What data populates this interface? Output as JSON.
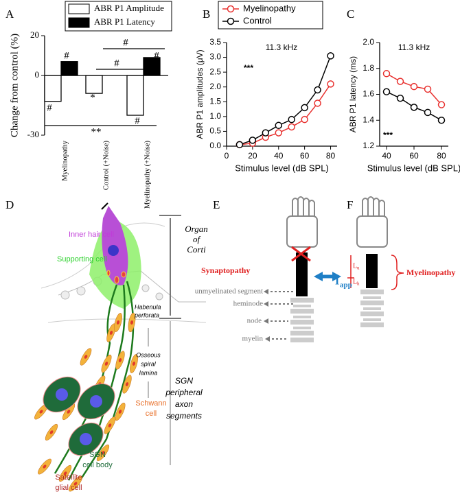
{
  "panels": {
    "a": "A",
    "b": "B",
    "c": "C",
    "d": "D",
    "e": "E",
    "f": "F"
  },
  "chart_data": [
    {
      "type": "bar",
      "categories": [
        "Myelinopathy",
        "Control (+Noise)",
        "Myelinopathy (+Noise)"
      ],
      "ylabel": "Change from control (%)",
      "series": [
        {
          "name": "ABR P1 Amplitude",
          "color": "#ffffff",
          "values": [
            -13,
            -9,
            -20
          ]
        },
        {
          "name": "ABR P1 Latency",
          "color": "#000000",
          "values": [
            7,
            null,
            9
          ]
        }
      ],
      "ylim": [
        -30,
        20
      ],
      "yticks": [
        -30,
        0,
        20
      ],
      "annotations": [
        "#",
        "#",
        "*",
        "#",
        "#",
        "#",
        "#",
        "**"
      ]
    },
    {
      "type": "line",
      "title": "11.3 kHz",
      "annotation": "***",
      "xlabel": "Stimulus level (dB SPL)",
      "ylabel": "ABR P1 amplitudes (μV)",
      "x": [
        10,
        20,
        30,
        40,
        50,
        60,
        70,
        80
      ],
      "series": [
        {
          "name": "Myelinopathy",
          "color": "#e8312f",
          "values": [
            0.05,
            0.1,
            0.3,
            0.45,
            0.65,
            0.9,
            1.45,
            2.1
          ]
        },
        {
          "name": "Control",
          "color": "#000000",
          "values": [
            0.05,
            0.2,
            0.45,
            0.7,
            0.9,
            1.3,
            1.9,
            3.05
          ]
        }
      ],
      "xlim": [
        0,
        85
      ],
      "xticks": [
        0,
        20,
        40,
        60,
        80
      ],
      "ylim": [
        0,
        3.5
      ],
      "yticks": [
        {
          "value": 0,
          "label": "0.0"
        },
        0.5,
        {
          "value": 1,
          "label": "1.0"
        },
        1.5,
        {
          "value": 2,
          "label": "2.0"
        },
        2.5,
        {
          "value": 3,
          "label": "3.0"
        },
        3.5
      ]
    },
    {
      "type": "line",
      "title": "11.3 kHz",
      "annotation": "***",
      "xlabel": "Stimulus level (dB SPL)",
      "ylabel": "ABR P1 latency (ms)",
      "x": [
        40,
        50,
        60,
        70,
        80
      ],
      "series": [
        {
          "color": "#e8312f",
          "values": [
            1.76,
            1.7,
            1.66,
            1.64,
            1.52
          ]
        },
        {
          "color": "#000000",
          "values": [
            1.62,
            1.57,
            1.5,
            1.46,
            1.4
          ]
        }
      ],
      "xlim": [
        35,
        85
      ],
      "xticks": [
        40,
        60,
        80
      ],
      "ylim": [
        1.2,
        2.0
      ],
      "yticks": [
        1.2,
        1.4,
        1.6,
        1.8,
        {
          "value": 2.0,
          "label": "2.0"
        }
      ]
    }
  ],
  "diagram": {
    "inner_hair_cell": "Inner hair cell",
    "supporting_cell": "Supporting cell",
    "organ_of_corti": [
      "Organ",
      "of",
      "Corti"
    ],
    "habenula": [
      "Habenula",
      "perforata"
    ],
    "osseous": [
      "Osseous",
      "spiral",
      "lamina"
    ],
    "sgn_segments": [
      "SGN",
      "peripheral",
      "axon",
      "segments"
    ],
    "schwann": [
      "Schwann",
      "cell"
    ],
    "sgn_body": [
      "SGN",
      "cell body"
    ],
    "satellite": [
      "Satellite",
      "glial cell"
    ],
    "synaptopathy": "Synaptopathy",
    "iapp": [
      "I",
      "app"
    ],
    "unmyelinated": "unmyelinated  segment",
    "heminode": "heminode",
    "node": "node",
    "myelin": "myelin",
    "lu": [
      "L",
      "u"
    ],
    "lh": [
      "L",
      "h"
    ],
    "myelinopathy": "Myelinopathy"
  }
}
